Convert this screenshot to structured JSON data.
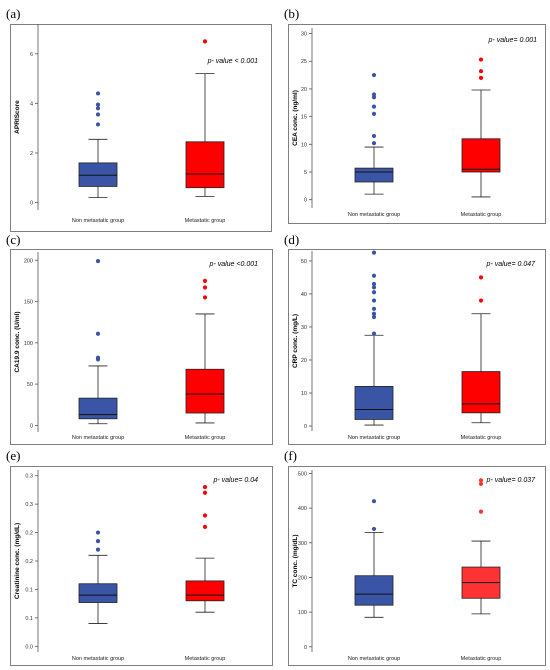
{
  "colors": {
    "blue": "#3b55a6",
    "red": "#ff0000",
    "red_light": "#ff3333",
    "axis": "#555555",
    "frame": "#7f7f7f"
  },
  "panels": [
    {
      "label": "(a)",
      "pvalue": "p- value < 0.001"
    },
    {
      "label": "(b)",
      "pvalue": "p- value= 0.001"
    },
    {
      "label": "(c)",
      "pvalue": "p- value <0.001"
    },
    {
      "label": "(d)",
      "pvalue": "p- value= 0.047"
    },
    {
      "label": "(e)",
      "pvalue": "p- value= 0.04"
    },
    {
      "label": "(f)",
      "pvalue": "p- value= 0.037"
    }
  ],
  "chart_data": [
    {
      "type": "box",
      "ylabel": "APRIScore",
      "ylim": [
        -0.3,
        7.2
      ],
      "yticks": [
        0,
        2,
        4,
        6
      ],
      "tick_labels": [
        "0",
        "2",
        "4",
        "6"
      ],
      "categories": [
        "Non metastatic group",
        "Metastatic group"
      ],
      "boxes": [
        {
          "min": 0.2,
          "q1": 0.65,
          "median": 1.1,
          "q3": 1.6,
          "max": 2.55,
          "outliers": [
            3.15,
            3.55,
            3.8,
            3.95,
            4.4
          ],
          "color": "#3b55a6"
        },
        {
          "min": 0.25,
          "q1": 0.6,
          "median": 1.15,
          "q3": 2.45,
          "max": 5.2,
          "outliers": [
            6.5
          ],
          "color": "#ff0000"
        }
      ]
    },
    {
      "type": "box",
      "ylabel": "CEA conc. (ng/ml)",
      "ylim": [
        -1.5,
        31
      ],
      "yticks": [
        0,
        5,
        10,
        15,
        20,
        25,
        30
      ],
      "tick_labels": [
        "0",
        "5",
        "10",
        "15",
        "20",
        "25",
        "30"
      ],
      "categories": [
        "Non metastatic group",
        "Metastatic group"
      ],
      "boxes": [
        {
          "min": 1.0,
          "q1": 3.2,
          "median": 5.0,
          "q3": 5.7,
          "max": 9.5,
          "outliers": [
            10.2,
            11.5,
            15.5,
            16.8,
            18.5,
            19.0,
            22.5
          ],
          "color": "#3b55a6"
        },
        {
          "min": 0.5,
          "q1": 5.0,
          "median": 5.5,
          "q3": 11.0,
          "max": 19.8,
          "outliers": [
            22.0,
            23.2,
            25.3
          ],
          "color": "#ff0000"
        }
      ]
    },
    {
      "type": "box",
      "ylabel": "CA19.9 conc. (U/ml)",
      "ylim": [
        -8,
        210
      ],
      "yticks": [
        0,
        50,
        100,
        150,
        200
      ],
      "tick_labels": [
        "0",
        "50",
        "100",
        "150",
        "200"
      ],
      "categories": [
        "Non metastatic group",
        "Metastatic group"
      ],
      "boxes": [
        {
          "min": 2,
          "q1": 8,
          "median": 13,
          "q3": 33,
          "max": 72,
          "outliers": [
            80,
            82,
            111,
            199
          ],
          "color": "#3b55a6"
        },
        {
          "min": 3,
          "q1": 15,
          "median": 38,
          "q3": 68,
          "max": 135,
          "outliers": [
            155,
            167,
            175
          ],
          "color": "#ff0000"
        }
      ]
    },
    {
      "type": "box",
      "ylabel": "CRP conc. (mg/L)",
      "ylim": [
        -1.5,
        53
      ],
      "yticks": [
        0,
        10,
        20,
        30,
        40,
        50
      ],
      "tick_labels": [
        "0",
        "10",
        "20",
        "30",
        "40",
        "50"
      ],
      "categories": [
        "Non metastatic group",
        "Metastatic group"
      ],
      "boxes": [
        {
          "min": 0.3,
          "q1": 2,
          "median": 5,
          "q3": 12,
          "max": 27.5,
          "outliers": [
            28,
            33,
            34,
            35.5,
            38,
            40.5,
            42,
            43,
            45.5,
            52.5
          ],
          "color": "#3b55a6"
        },
        {
          "min": 1,
          "q1": 4,
          "median": 6.7,
          "q3": 16.5,
          "max": 34,
          "outliers": [
            38,
            45
          ],
          "color": "#ff0000"
        }
      ]
    },
    {
      "type": "box",
      "ylabel": "Creatinine conc. (mg/dL)",
      "ylim": [
        -0.01,
        0.31
      ],
      "yticks": [
        0.0,
        0.05,
        0.1,
        0.15,
        0.2,
        0.25,
        0.3
      ],
      "tick_labels": [
        "0.0",
        "0.1",
        "0.1",
        "0.2",
        "0.2",
        "0.3",
        "0.3"
      ],
      "categories": [
        "Non metastatic group",
        "Metastatic group"
      ],
      "boxes": [
        {
          "min": 0.04,
          "q1": 0.077,
          "median": 0.09,
          "q3": 0.11,
          "max": 0.16,
          "outliers": [
            0.17,
            0.185,
            0.2
          ],
          "color": "#3b55a6"
        },
        {
          "min": 0.06,
          "q1": 0.08,
          "median": 0.09,
          "q3": 0.115,
          "max": 0.155,
          "outliers": [
            0.21,
            0.23,
            0.27,
            0.28
          ],
          "color": "#ff0000"
        }
      ]
    },
    {
      "type": "box",
      "ylabel": "TC conc. (mg/dL)",
      "ylim": [
        -15,
        510
      ],
      "yticks": [
        0,
        100,
        200,
        300,
        400,
        500
      ],
      "tick_labels": [
        "0",
        "100",
        "200",
        "300",
        "400",
        "500"
      ],
      "categories": [
        "Non metastatic group",
        "Metastatic group"
      ],
      "boxes": [
        {
          "min": 85,
          "q1": 120,
          "median": 152,
          "q3": 205,
          "max": 330,
          "outliers": [
            340,
            420
          ],
          "color": "#3b55a6"
        },
        {
          "min": 95,
          "q1": 140,
          "median": 185,
          "q3": 230,
          "max": 305,
          "outliers": [
            390,
            470,
            480
          ],
          "color": "#ff3333"
        }
      ]
    }
  ]
}
